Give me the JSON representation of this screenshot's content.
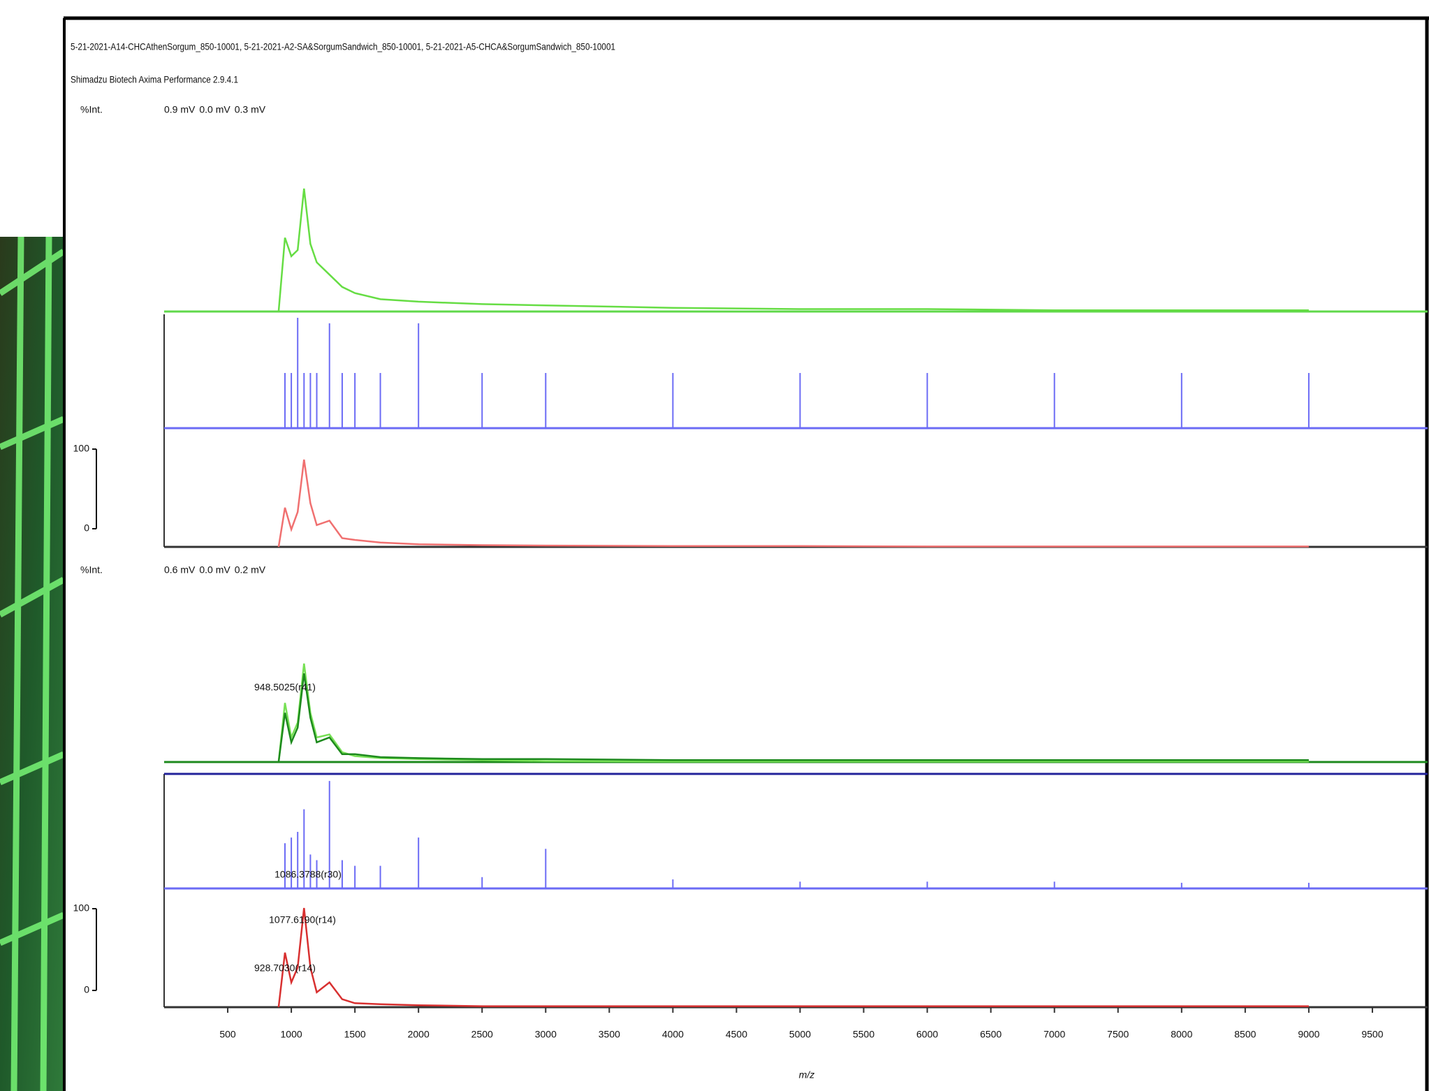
{
  "header": {
    "title": "5-21-2021-A14-CHCAthenSorgum_850-10001, 5-21-2021-A2-SA&SorgumSandwich_850-10001, 5-21-2021-A5-CHCA&SorgumSandwich_850-10001",
    "subtitle": "Shimadzu Biotech Axima Performance 2.9.4.1"
  },
  "chart_data": [
    {
      "type": "line",
      "y_label": "%Int.",
      "intensity_labels": [
        {
          "text": "0.9 mV",
          "color": "#f06a6a"
        },
        {
          "text": "0.0 mV",
          "color": "#7070f0"
        },
        {
          "text": "0.3 mV",
          "color": "#5fd84a"
        }
      ],
      "x": [
        900,
        950,
        1000,
        1050,
        1100,
        1150,
        1200,
        1300,
        1400,
        1500,
        1700,
        2000,
        2500,
        3000,
        4000,
        5000,
        6000,
        7000,
        8000,
        9000
      ],
      "series": [
        {
          "color": "#66dd44",
          "style": "line",
          "values": [
            0,
            60,
            45,
            50,
            100,
            55,
            40,
            30,
            20,
            15,
            10,
            8,
            6,
            5,
            3,
            2,
            2,
            1,
            1,
            1
          ]
        },
        {
          "color": "#6b6bf5",
          "style": "stick",
          "values": [
            0,
            50,
            50,
            100,
            50,
            50,
            50,
            95,
            50,
            50,
            50,
            95,
            50,
            50,
            50,
            50,
            50,
            50,
            50,
            50
          ]
        },
        {
          "color": "#f07070",
          "style": "line",
          "values": [
            0,
            45,
            20,
            40,
            100,
            50,
            25,
            30,
            10,
            8,
            5,
            3,
            2,
            1.5,
            1,
            1,
            0.5,
            0.5,
            0.5,
            0.5
          ]
        }
      ],
      "xlim": [
        0,
        10000
      ],
      "ylim": [
        0,
        100
      ],
      "yticks": [
        0,
        100
      ]
    },
    {
      "type": "line",
      "y_label": "%Int.",
      "intensity_labels": [
        {
          "text": "0.6 mV",
          "color": "#f06a6a"
        },
        {
          "text": "0.0 mV",
          "color": "#7070f0"
        },
        {
          "text": "0.2 mV",
          "color": "#5fd84a"
        }
      ],
      "x": [
        900,
        950,
        1000,
        1050,
        1100,
        1150,
        1200,
        1300,
        1400,
        1500,
        1700,
        2000,
        2500,
        3000,
        4000,
        5000,
        6000,
        7000,
        8000,
        9000
      ],
      "series": [
        {
          "color": "#77e055",
          "style": "line",
          "values": [
            0,
            60,
            25,
            40,
            100,
            50,
            25,
            28,
            10,
            6,
            4,
            3,
            2,
            1,
            0.5,
            0.5,
            0.5,
            0.5,
            0.5,
            0.5
          ]
        },
        {
          "color": "#1d8a1d",
          "style": "line",
          "values": [
            0,
            50,
            20,
            35,
            90,
            45,
            20,
            25,
            8,
            8,
            5,
            4,
            3,
            3,
            2,
            2,
            2,
            2,
            2,
            2
          ]
        },
        {
          "color": "#6b6bf5",
          "style": "stick",
          "values": [
            0,
            40,
            45,
            50,
            70,
            30,
            25,
            95,
            25,
            20,
            20,
            45,
            10,
            35,
            8,
            6,
            6,
            6,
            5,
            5
          ]
        },
        {
          "color": "#d83030",
          "style": "line",
          "values": [
            0,
            55,
            25,
            40,
            100,
            40,
            15,
            25,
            8,
            4,
            3,
            2,
            1,
            1,
            1,
            1,
            1,
            1,
            1,
            1
          ]
        }
      ],
      "annotations": [
        "948.5025(r41)",
        "1086.3788(r30)",
        "1077.6190(r14)",
        "928.7030(r14)"
      ],
      "x_label": "m/z",
      "xlim": [
        0,
        10000
      ],
      "xticks": [
        500,
        1000,
        1500,
        2000,
        2500,
        3000,
        3500,
        4000,
        4500,
        5000,
        5500,
        6000,
        6500,
        7000,
        7500,
        8000,
        8500,
        9000,
        9500
      ],
      "ylim": [
        0,
        100
      ],
      "yticks": [
        0,
        100
      ]
    }
  ]
}
